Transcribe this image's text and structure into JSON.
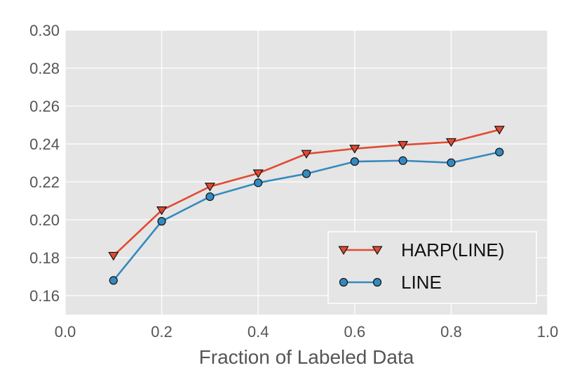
{
  "chart_data": {
    "type": "line",
    "title": "",
    "xlabel": "Fraction of Labeled Data",
    "ylabel": "",
    "xlim": [
      0.0,
      1.0
    ],
    "ylim": [
      0.15,
      0.3
    ],
    "xticks": [
      "0.0",
      "0.2",
      "0.4",
      "0.6",
      "0.8",
      "1.0"
    ],
    "yticks": [
      "0.16",
      "0.18",
      "0.20",
      "0.22",
      "0.24",
      "0.26",
      "0.28",
      "0.30"
    ],
    "grid": true,
    "legend_position": "bottom-right",
    "background_color": "#e5e5e5",
    "grid_color": "#ffffff",
    "x": [
      0.1,
      0.2,
      0.3,
      0.4,
      0.5,
      0.6,
      0.7,
      0.8,
      0.9
    ],
    "series": [
      {
        "name": "HARP(LINE)",
        "color": "#e24a33",
        "marker": "triangle-down",
        "values": [
          0.181,
          0.205,
          0.2175,
          0.2245,
          0.2348,
          0.2375,
          0.2395,
          0.241,
          0.2475
        ]
      },
      {
        "name": "LINE",
        "color": "#348abd",
        "marker": "circle",
        "values": [
          0.168,
          0.1992,
          0.2122,
          0.2195,
          0.2243,
          0.2307,
          0.2312,
          0.2301,
          0.2357
        ]
      }
    ]
  }
}
